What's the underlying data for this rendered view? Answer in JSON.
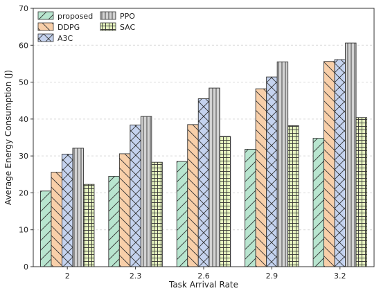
{
  "chart_data": {
    "type": "bar",
    "xlabel": "Task Arrival Rate",
    "ylabel": "Average Energy Consumption (J)",
    "categories": [
      "2",
      "2.3",
      "2.6",
      "2.9",
      "3.2"
    ],
    "ylim": [
      0,
      70
    ],
    "yticks": [
      "0",
      "10",
      "20",
      "30",
      "40",
      "50",
      "60",
      "70"
    ],
    "grid": "horizontal dashed",
    "legend_placement": "top-left",
    "series": [
      {
        "name": "proposed",
        "values": [
          20.5,
          24.5,
          28.5,
          31.8,
          34.8
        ],
        "color": "#b8e5cf",
        "hatch": "forward-diagonal"
      },
      {
        "name": "DDPG",
        "values": [
          25.6,
          30.6,
          38.5,
          48.2,
          55.6
        ],
        "color": "#f8cfa9",
        "hatch": "back-diagonal"
      },
      {
        "name": "A3C",
        "values": [
          30.5,
          38.4,
          45.5,
          51.4,
          56.1
        ],
        "color": "#c5d3ef",
        "hatch": "cross-diagonal"
      },
      {
        "name": "PPO",
        "values": [
          32.1,
          40.7,
          48.4,
          55.5,
          60.6
        ],
        "color": "#d3d3d3",
        "hatch": "vertical"
      },
      {
        "name": "SAC",
        "values": [
          22.3,
          28.3,
          35.3,
          38.2,
          40.4
        ],
        "color": "#e7f5c0",
        "hatch": "grid"
      }
    ]
  }
}
